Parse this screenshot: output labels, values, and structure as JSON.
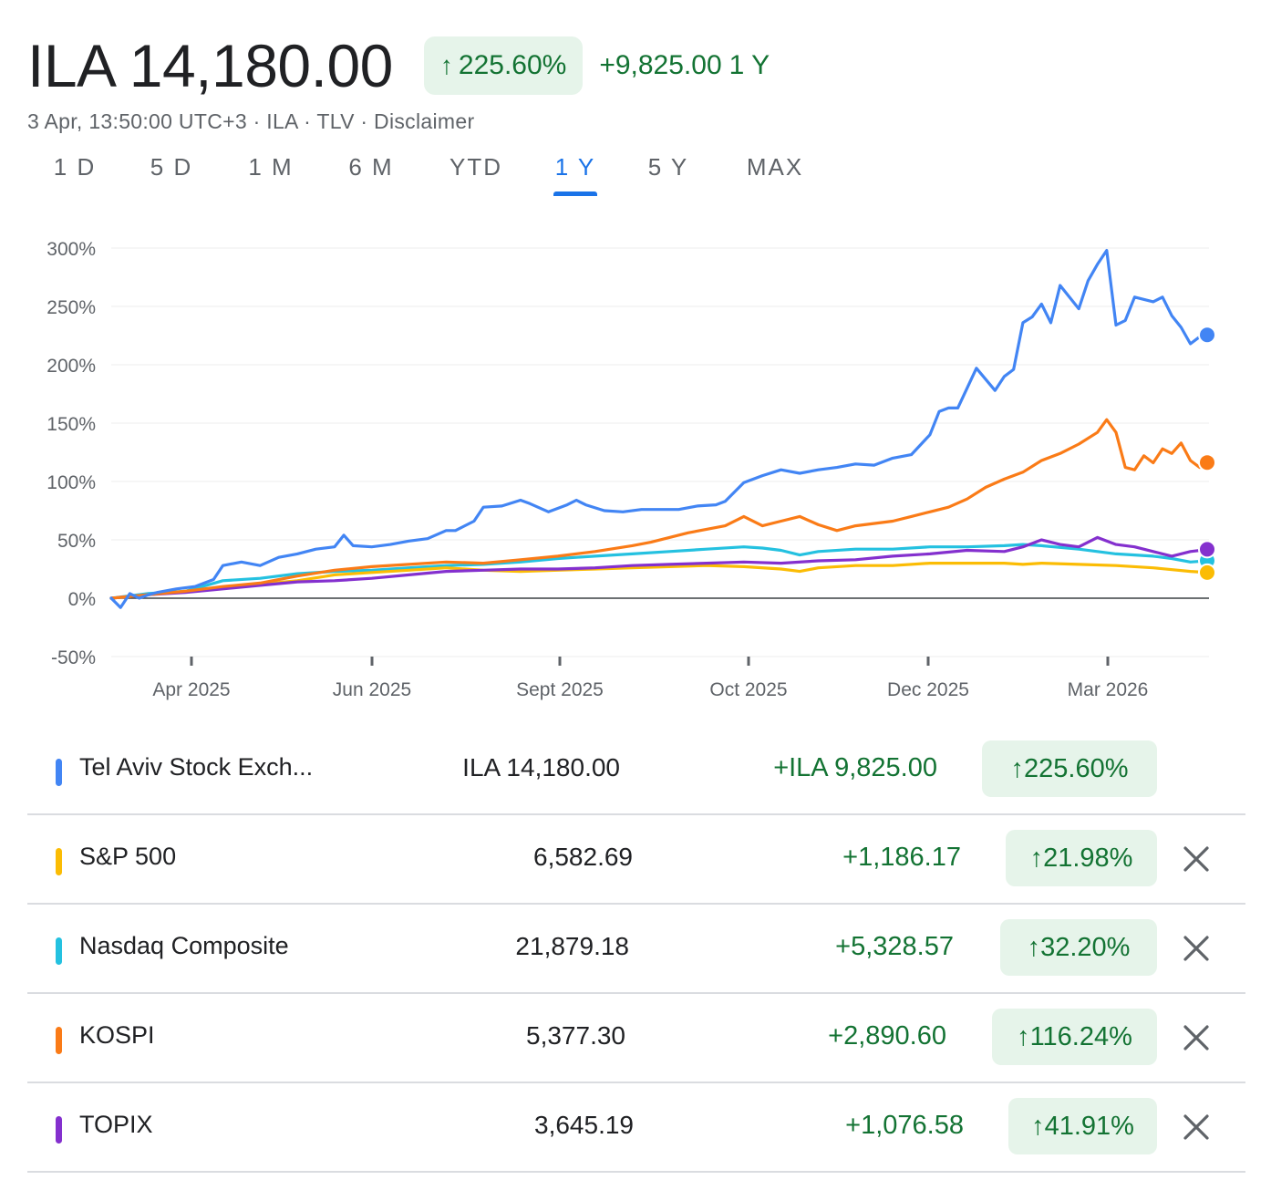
{
  "header": {
    "price": "ILA 14,180.00",
    "pct_arrow": "↑",
    "pct": "225.60%",
    "change": "+9,825.00",
    "period": "1 Y",
    "subline": "3 Apr, 13:50:00 UTC+3 · ILA · TLV · Disclaimer"
  },
  "tabs": [
    {
      "label": "1 D",
      "active": false
    },
    {
      "label": "5 D",
      "active": false
    },
    {
      "label": "1 M",
      "active": false
    },
    {
      "label": "6 M",
      "active": false
    },
    {
      "label": "YTD",
      "active": false
    },
    {
      "label": "1 Y",
      "active": true
    },
    {
      "label": "5 Y",
      "active": false
    },
    {
      "label": "MAX",
      "active": false
    }
  ],
  "colors": {
    "up": "#137333",
    "up_bg": "#e6f4ea",
    "accent": "#1a73e8",
    "tel_aviv": "#4285f4",
    "sp500": "#fbbc04",
    "nasdaq": "#24c1e0",
    "kospi": "#fa7b17",
    "topix": "#8430ce"
  },
  "chart_data": {
    "type": "line",
    "y_unit": "% change",
    "ylim": [
      -50,
      300
    ],
    "y_ticks": [
      "300%",
      "250%",
      "200%",
      "150%",
      "100%",
      "50%",
      "0%",
      "-50%"
    ],
    "x_ticks": [
      "Apr 2025",
      "Jun 2025",
      "Sept 2025",
      "Oct 2025",
      "Dec 2025",
      "Mar 2026"
    ],
    "grid": true,
    "series": [
      {
        "name": "Tel Aviv Stock Exch...",
        "color": "#4285f4",
        "points": [
          [
            0,
            0
          ],
          [
            1,
            -8
          ],
          [
            2,
            4
          ],
          [
            3,
            0
          ],
          [
            4,
            3
          ],
          [
            5,
            5
          ],
          [
            7,
            8
          ],
          [
            9,
            10
          ],
          [
            11,
            16
          ],
          [
            12,
            28
          ],
          [
            14,
            31
          ],
          [
            16,
            28
          ],
          [
            18,
            35
          ],
          [
            20,
            38
          ],
          [
            22,
            42
          ],
          [
            24,
            44
          ],
          [
            25,
            54
          ],
          [
            26,
            45
          ],
          [
            28,
            44
          ],
          [
            30,
            46
          ],
          [
            32,
            49
          ],
          [
            34,
            51
          ],
          [
            36,
            58
          ],
          [
            37,
            58
          ],
          [
            39,
            66
          ],
          [
            40,
            78
          ],
          [
            42,
            79
          ],
          [
            44,
            84
          ],
          [
            45,
            81
          ],
          [
            47,
            74
          ],
          [
            49,
            80
          ],
          [
            50,
            84
          ],
          [
            51,
            80
          ],
          [
            53,
            75
          ],
          [
            55,
            74
          ],
          [
            57,
            76
          ],
          [
            59,
            76
          ],
          [
            61,
            76
          ],
          [
            63,
            79
          ],
          [
            65,
            80
          ],
          [
            66,
            83
          ],
          [
            68,
            99
          ],
          [
            70,
            105
          ],
          [
            72,
            110
          ],
          [
            74,
            107
          ],
          [
            76,
            110
          ],
          [
            78,
            112
          ],
          [
            80,
            115
          ],
          [
            82,
            114
          ],
          [
            84,
            120
          ],
          [
            86,
            123
          ],
          [
            88,
            140
          ],
          [
            89,
            160
          ],
          [
            90,
            163
          ],
          [
            91,
            163
          ],
          [
            93,
            197
          ],
          [
            95,
            178
          ],
          [
            96,
            190
          ],
          [
            97,
            196
          ],
          [
            98,
            236
          ],
          [
            99,
            241
          ],
          [
            100,
            252
          ],
          [
            101,
            236
          ],
          [
            102,
            268
          ],
          [
            103,
            258
          ],
          [
            104,
            248
          ],
          [
            105,
            272
          ],
          [
            106,
            286
          ],
          [
            107,
            298
          ],
          [
            108,
            234
          ],
          [
            109,
            238
          ],
          [
            110,
            258
          ],
          [
            112,
            254
          ],
          [
            113,
            258
          ],
          [
            114,
            242
          ],
          [
            115,
            232
          ],
          [
            116,
            218
          ],
          [
            117,
            224
          ],
          [
            118,
            225.6
          ]
        ]
      },
      {
        "name": "S&P 500",
        "color": "#fbbc04",
        "points": [
          [
            0,
            0
          ],
          [
            4,
            3
          ],
          [
            8,
            6
          ],
          [
            12,
            9
          ],
          [
            16,
            12
          ],
          [
            20,
            15
          ],
          [
            24,
            20
          ],
          [
            28,
            22
          ],
          [
            32,
            24
          ],
          [
            36,
            26
          ],
          [
            40,
            24
          ],
          [
            44,
            23
          ],
          [
            48,
            24
          ],
          [
            52,
            25
          ],
          [
            56,
            26
          ],
          [
            60,
            27
          ],
          [
            64,
            28
          ],
          [
            68,
            27
          ],
          [
            72,
            25
          ],
          [
            74,
            23
          ],
          [
            76,
            26
          ],
          [
            80,
            28
          ],
          [
            84,
            28
          ],
          [
            88,
            30
          ],
          [
            92,
            30
          ],
          [
            96,
            30
          ],
          [
            98,
            29
          ],
          [
            100,
            30
          ],
          [
            104,
            29
          ],
          [
            108,
            28
          ],
          [
            112,
            26
          ],
          [
            116,
            23
          ],
          [
            118,
            21.98
          ]
        ]
      },
      {
        "name": "Nasdaq Composite",
        "color": "#24c1e0",
        "points": [
          [
            0,
            0
          ],
          [
            4,
            4
          ],
          [
            8,
            6
          ],
          [
            12,
            15
          ],
          [
            16,
            17
          ],
          [
            20,
            21
          ],
          [
            24,
            23
          ],
          [
            28,
            24
          ],
          [
            32,
            26
          ],
          [
            36,
            28
          ],
          [
            40,
            29
          ],
          [
            44,
            31
          ],
          [
            48,
            34
          ],
          [
            52,
            36
          ],
          [
            56,
            38
          ],
          [
            60,
            40
          ],
          [
            64,
            42
          ],
          [
            68,
            44
          ],
          [
            70,
            43
          ],
          [
            72,
            41
          ],
          [
            74,
            37
          ],
          [
            76,
            40
          ],
          [
            80,
            42
          ],
          [
            84,
            42
          ],
          [
            88,
            44
          ],
          [
            92,
            44
          ],
          [
            96,
            45
          ],
          [
            98,
            46
          ],
          [
            100,
            45
          ],
          [
            104,
            42
          ],
          [
            108,
            38
          ],
          [
            112,
            36
          ],
          [
            114,
            34
          ],
          [
            116,
            31
          ],
          [
            118,
            32.2
          ]
        ]
      },
      {
        "name": "KOSPI",
        "color": "#fa7b17",
        "points": [
          [
            0,
            0
          ],
          [
            4,
            3
          ],
          [
            8,
            6
          ],
          [
            12,
            10
          ],
          [
            16,
            13
          ],
          [
            20,
            19
          ],
          [
            24,
            24
          ],
          [
            28,
            27
          ],
          [
            32,
            29
          ],
          [
            36,
            31
          ],
          [
            40,
            30
          ],
          [
            44,
            33
          ],
          [
            48,
            36
          ],
          [
            52,
            40
          ],
          [
            56,
            45
          ],
          [
            58,
            48
          ],
          [
            62,
            56
          ],
          [
            66,
            62
          ],
          [
            68,
            70
          ],
          [
            70,
            62
          ],
          [
            72,
            66
          ],
          [
            74,
            70
          ],
          [
            76,
            63
          ],
          [
            78,
            58
          ],
          [
            80,
            62
          ],
          [
            84,
            66
          ],
          [
            86,
            70
          ],
          [
            88,
            74
          ],
          [
            90,
            78
          ],
          [
            92,
            85
          ],
          [
            94,
            95
          ],
          [
            96,
            102
          ],
          [
            98,
            108
          ],
          [
            100,
            118
          ],
          [
            102,
            124
          ],
          [
            104,
            132
          ],
          [
            106,
            142
          ],
          [
            107,
            153
          ],
          [
            108,
            142
          ],
          [
            109,
            112
          ],
          [
            110,
            110
          ],
          [
            111,
            122
          ],
          [
            112,
            116
          ],
          [
            113,
            128
          ],
          [
            114,
            124
          ],
          [
            115,
            133
          ],
          [
            116,
            118
          ],
          [
            117,
            112
          ],
          [
            118,
            116.24
          ]
        ]
      },
      {
        "name": "TOPIX",
        "color": "#8430ce",
        "points": [
          [
            0,
            0
          ],
          [
            4,
            3
          ],
          [
            8,
            5
          ],
          [
            12,
            8
          ],
          [
            16,
            11
          ],
          [
            20,
            14
          ],
          [
            24,
            15
          ],
          [
            28,
            17
          ],
          [
            32,
            20
          ],
          [
            36,
            23
          ],
          [
            40,
            24
          ],
          [
            44,
            25
          ],
          [
            48,
            25
          ],
          [
            52,
            26
          ],
          [
            56,
            28
          ],
          [
            60,
            29
          ],
          [
            64,
            30
          ],
          [
            68,
            31
          ],
          [
            72,
            30
          ],
          [
            76,
            32
          ],
          [
            80,
            33
          ],
          [
            84,
            36
          ],
          [
            88,
            38
          ],
          [
            92,
            41
          ],
          [
            96,
            40
          ],
          [
            98,
            44
          ],
          [
            100,
            50
          ],
          [
            102,
            46
          ],
          [
            104,
            44
          ],
          [
            106,
            52
          ],
          [
            108,
            46
          ],
          [
            110,
            44
          ],
          [
            112,
            40
          ],
          [
            114,
            36
          ],
          [
            116,
            40
          ],
          [
            118,
            41.91
          ]
        ]
      }
    ]
  },
  "legend": [
    {
      "name": "Tel Aviv Stock Exch...",
      "value": "ILA 14,180.00",
      "change": "+ILA 9,825.00",
      "arrow": "↑",
      "pct": "225.60%",
      "color": "#4285f4",
      "removable": false
    },
    {
      "name": "S&P 500",
      "value": "6,582.69",
      "change": "+1,186.17",
      "arrow": "↑",
      "pct": "21.98%",
      "color": "#fbbc04",
      "removable": true
    },
    {
      "name": "Nasdaq Composite",
      "value": "21,879.18",
      "change": "+5,328.57",
      "arrow": "↑",
      "pct": "32.20%",
      "color": "#24c1e0",
      "removable": true
    },
    {
      "name": "KOSPI",
      "value": "5,377.30",
      "change": "+2,890.60",
      "arrow": "↑",
      "pct": "116.24%",
      "color": "#fa7b17",
      "removable": true
    },
    {
      "name": "TOPIX",
      "value": "3,645.19",
      "change": "+1,076.58",
      "arrow": "↑",
      "pct": "41.91%",
      "color": "#8430ce",
      "removable": true
    }
  ]
}
